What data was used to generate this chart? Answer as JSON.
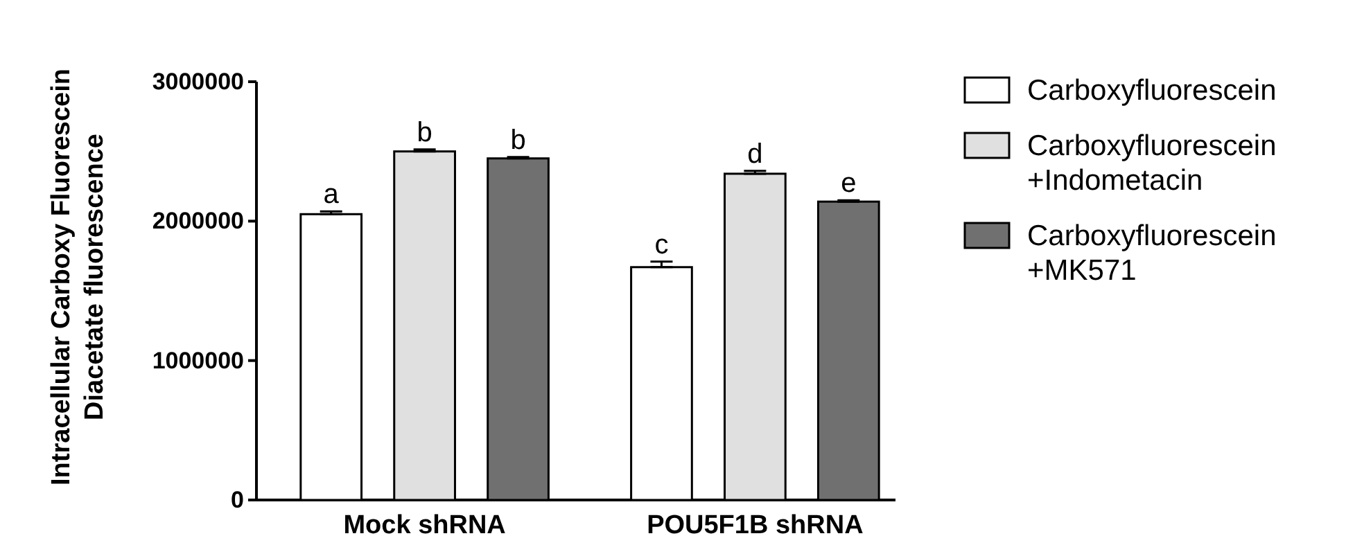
{
  "chart_data": {
    "type": "bar",
    "ylabel": "Intracellular Carboxy Fluorescein\nDiacetate fluorescence",
    "categories": [
      "Mock shRNA",
      "POU5F1B shRNA"
    ],
    "series": [
      {
        "name": "Carboxyfluorescein",
        "color": "#ffffff",
        "values": [
          2050000,
          1670000
        ],
        "errors": [
          [
            2050000,
            2070000
          ],
          [
            1670000,
            1710000
          ]
        ]
      },
      {
        "name": "Carboxyfluorescein\n+Indometacin",
        "color": "#e0e0e0",
        "values": [
          2500000,
          2340000
        ],
        "errors": [
          [
            2500000,
            2515000
          ],
          [
            2340000,
            2360000
          ]
        ]
      },
      {
        "name": "Carboxyfluorescein\n+MK571",
        "color": "#707070",
        "values": [
          2450000,
          2140000
        ],
        "errors": [
          [
            2450000,
            2460000
          ],
          [
            2140000,
            2150000
          ]
        ]
      }
    ],
    "ylim": [
      0,
      3000000
    ],
    "yticks": [
      0,
      1000000,
      2000000,
      3000000
    ],
    "grid": false,
    "legend": "right",
    "annotations": [
      "a",
      "b",
      "b",
      "c",
      "d",
      "e"
    ]
  }
}
